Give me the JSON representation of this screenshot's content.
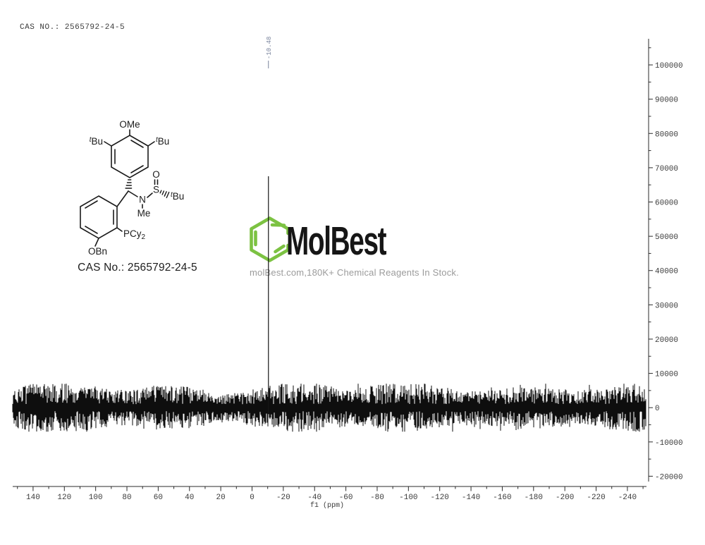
{
  "header": {
    "cas_line": "CAS NO.: 2565792-24-5"
  },
  "watermark": {
    "brand": "MolBest",
    "tagline": "molBest.com,180K+ Chemical Reagents In Stock.",
    "logo_green": "#7cc242"
  },
  "structure": {
    "caption": "CAS No.: 2565792-24-5",
    "labels": {
      "ome": "OMe",
      "tbu_sup": "t",
      "tbu_main": "Bu",
      "o": "O",
      "s": "S",
      "n": "N",
      "me": "Me",
      "pcy_main": "PCy",
      "pcy_sub": "2",
      "obn": "OBn"
    }
  },
  "chart_data": {
    "type": "line",
    "description": "NMR spectrum: flat noise baseline across full width with a single sharp peak",
    "title": "",
    "xlabel": "f1 (ppm)",
    "ylabel": "",
    "x_axis": {
      "major_ticks": [
        140,
        120,
        100,
        80,
        60,
        40,
        20,
        0,
        -20,
        -40,
        -60,
        -80,
        -100,
        -120,
        -140,
        -160,
        -180,
        -200,
        -220,
        -240
      ],
      "minor_step": 10,
      "range_ppm": [
        153,
        -252
      ],
      "direction": "values decrease left to right"
    },
    "y_axis": {
      "major_ticks": [
        100000,
        90000,
        80000,
        70000,
        60000,
        50000,
        40000,
        30000,
        20000,
        10000,
        0,
        -10000,
        -20000
      ],
      "minor_step": 5000,
      "range": [
        107500,
        -21500
      ],
      "side": "right"
    },
    "peaks": [
      {
        "ppm": -10.48,
        "label": "-10.48",
        "height_est": 67500
      }
    ],
    "noise": {
      "center_value": 0,
      "typical_amplitude": 3500,
      "max_amplitude": 7000
    },
    "colors": {
      "trace": "#0e0e0e",
      "axis": "#2b2b2b",
      "tick_label": "#3a3a3a",
      "peak_label": "#78839c"
    }
  }
}
